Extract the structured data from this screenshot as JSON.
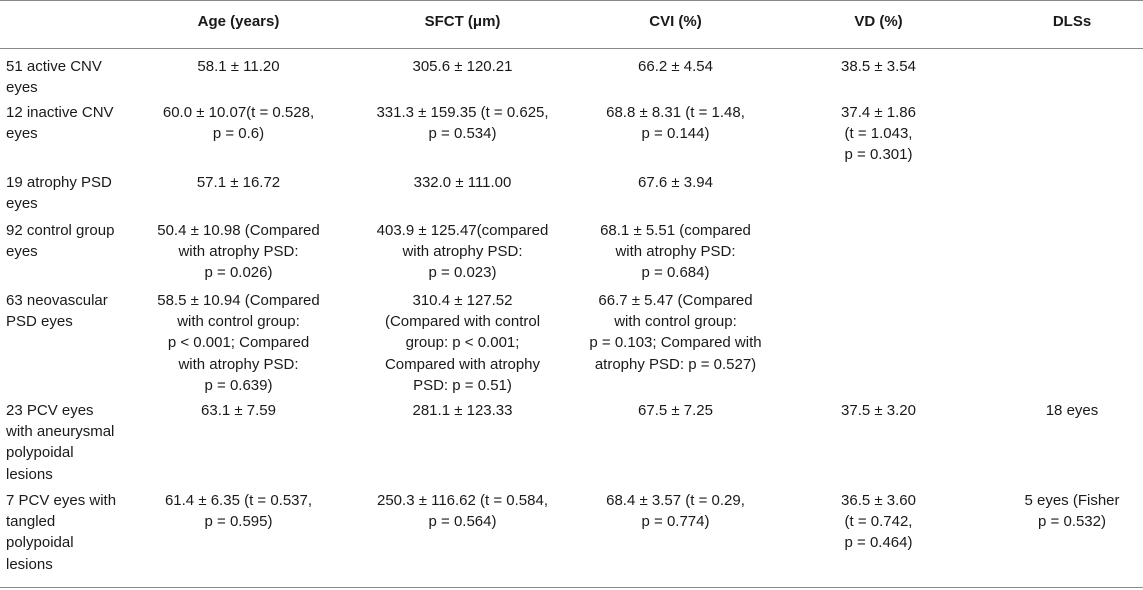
{
  "headers": {
    "label": "",
    "age": "Age (years)",
    "sfct": "SFCT (μm)",
    "cvi": "CVI (%)",
    "vd": "VD (%)",
    "dlss": "DLSs"
  },
  "rows": [
    {
      "label": [
        "51 active CNV",
        "eyes"
      ],
      "age": [
        "58.1 ± 11.20"
      ],
      "sfct": [
        "305.6 ± 120.21"
      ],
      "cvi": [
        "66.2 ± 4.54"
      ],
      "vd": [
        "38.5 ± 3.54"
      ],
      "dlss": []
    },
    {
      "label": [
        "12 inactive CNV",
        "eyes"
      ],
      "age": [
        "60.0 ± 10.07(t = 0.528,",
        "p = 0.6)"
      ],
      "sfct": [
        "331.3 ± 159.35 (t = 0.625,",
        "p = 0.534)"
      ],
      "cvi": [
        "68.8 ± 8.31 (t = 1.48,",
        "p = 0.144)"
      ],
      "vd": [
        "37.4 ± 1.86",
        "(t = 1.043,",
        "p = 0.301)"
      ],
      "dlss": []
    },
    {
      "label": [
        "19 atrophy PSD",
        "eyes"
      ],
      "age": [
        "57.1 ± 16.72"
      ],
      "sfct": [
        "332.0 ± 111.00"
      ],
      "cvi": [
        "67.6 ± 3.94"
      ],
      "vd": [],
      "dlss": []
    },
    {
      "label": [
        "92 control group",
        "eyes"
      ],
      "age": [
        "50.4 ± 10.98 (Compared",
        "with atrophy PSD:",
        "p = 0.026)"
      ],
      "sfct": [
        "403.9 ± 125.47(compared",
        "with atrophy PSD:",
        "p = 0.023)"
      ],
      "cvi": [
        "68.1 ± 5.51 (compared",
        "with atrophy PSD:",
        "p = 0.684)"
      ],
      "vd": [],
      "dlss": []
    },
    {
      "label": [
        "63 neovascular",
        "PSD eyes"
      ],
      "age": [
        "58.5 ± 10.94 (Compared",
        "with control group:",
        "p < 0.001; Compared",
        "with atrophy PSD:",
        "p = 0.639)"
      ],
      "sfct": [
        "310.4 ± 127.52",
        "(Compared with control",
        "group: p < 0.001;",
        "Compared with atrophy",
        "PSD: p = 0.51)"
      ],
      "cvi": [
        "66.7 ± 5.47 (Compared",
        "with control group:",
        "p = 0.103; Compared with",
        "atrophy PSD: p = 0.527)"
      ],
      "vd": [],
      "dlss": []
    },
    {
      "label": [
        "23 PCV eyes",
        "with aneurysmal",
        "polypoidal",
        "lesions"
      ],
      "age": [
        "63.1 ± 7.59"
      ],
      "sfct": [
        "281.1 ± 123.33"
      ],
      "cvi": [
        "67.5 ± 7.25"
      ],
      "vd": [
        "37.5 ± 3.20"
      ],
      "dlss": [
        "18 eyes"
      ]
    },
    {
      "label": [
        "7 PCV eyes with",
        "tangled",
        "polypoidal",
        "lesions"
      ],
      "age": [
        "61.4 ± 6.35 (t = 0.537,",
        "p = 0.595)"
      ],
      "sfct": [
        "250.3 ± 116.62 (t = 0.584,",
        "p = 0.564)"
      ],
      "cvi": [
        "68.4 ± 3.57 (t = 0.29,",
        "p = 0.774)"
      ],
      "vd": [
        "36.5 ± 3.60",
        "(t = 0.742,",
        "p = 0.464)"
      ],
      "dlss": [
        "5 eyes (Fisher",
        "p = 0.532)"
      ]
    }
  ]
}
